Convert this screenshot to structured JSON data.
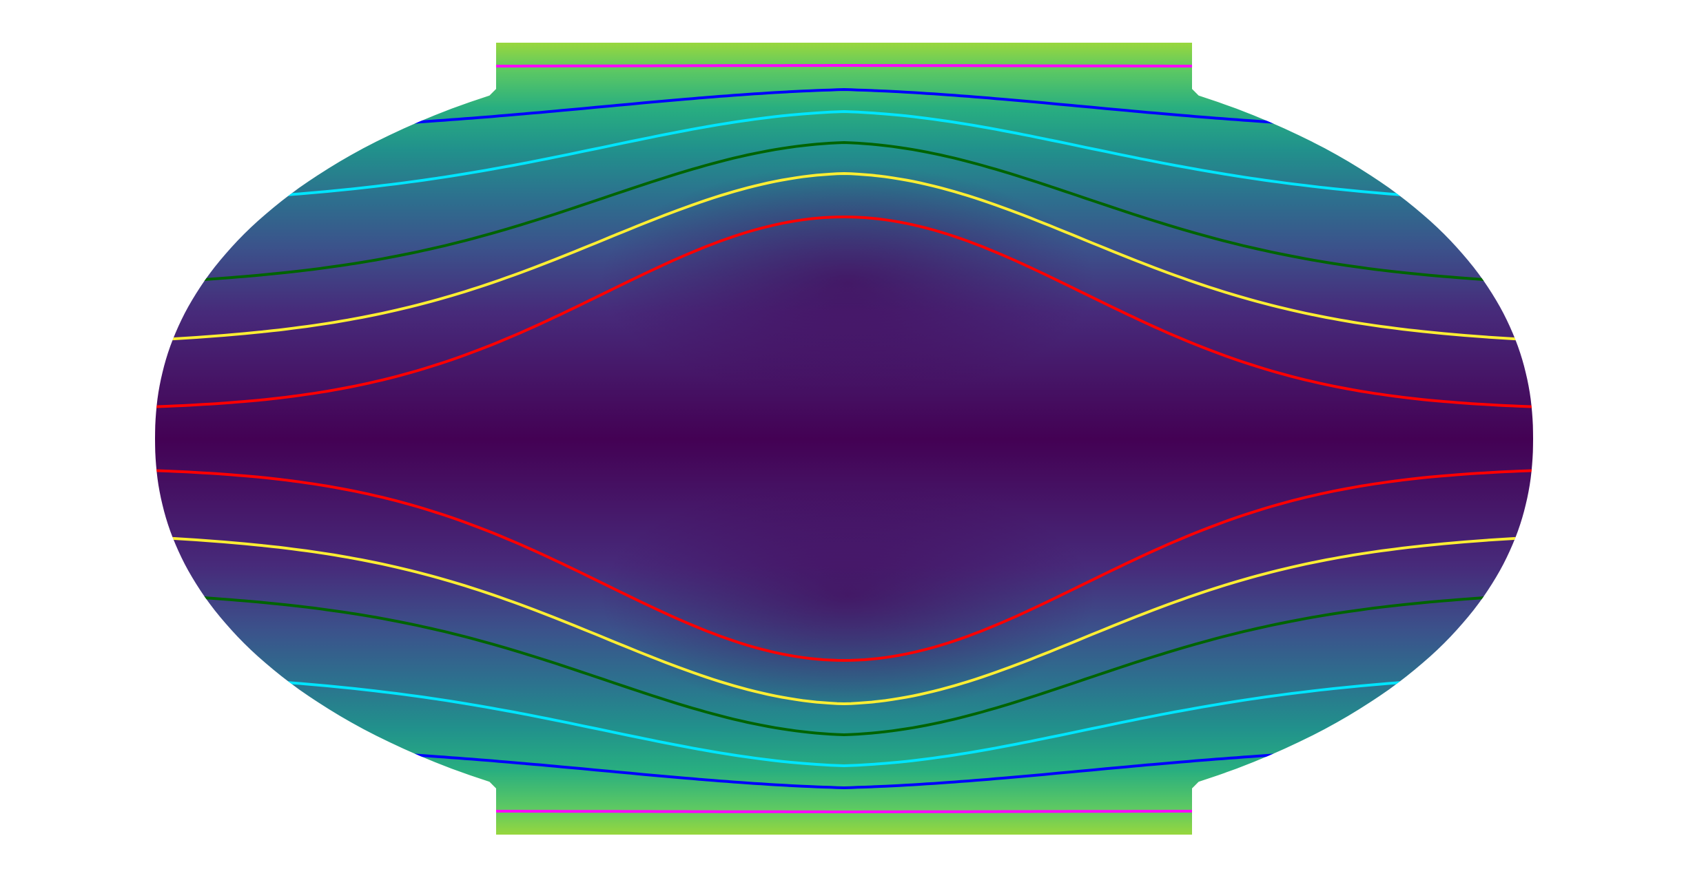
{
  "figure": {
    "projection": "robinson-like",
    "background": "#ffffff",
    "colormap": [
      "#440154",
      "#472a7a",
      "#3b528b",
      "#2c728e",
      "#21918c",
      "#28ae80",
      "#5ec962",
      "#addc30",
      "#fde725"
    ],
    "contour_colors": [
      "#ff0000",
      "#ffee33",
      "#006400",
      "#00e5ff",
      "#0000ff",
      "#ff00ff"
    ]
  }
}
